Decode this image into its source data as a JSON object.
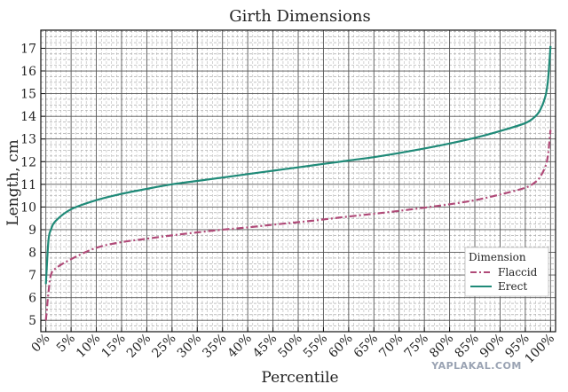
{
  "chart_data": {
    "type": "line",
    "title": "Girth Dimensions",
    "xlabel": "Percentile",
    "ylabel": "Length, cm",
    "xlim": [
      -1,
      101
    ],
    "ylim": [
      4.5,
      17.8
    ],
    "x_ticks": [
      "0%",
      "5%",
      "10%",
      "15%",
      "20%",
      "25%",
      "30%",
      "35%",
      "40%",
      "45%",
      "50%",
      "55%",
      "60%",
      "65%",
      "70%",
      "75%",
      "80%",
      "85%",
      "90%",
      "95%",
      "100%"
    ],
    "y_ticks": [
      "5",
      "6",
      "7",
      "8",
      "9",
      "10",
      "11",
      "12",
      "13",
      "14",
      "15",
      "16",
      "17"
    ],
    "grid": true,
    "legend": {
      "title": "Dimension",
      "placement": "bottom-right"
    },
    "series": [
      {
        "name": "Flaccid",
        "color": "#b04a78",
        "dash": true,
        "x": [
          0,
          0.5,
          1,
          2,
          5,
          10,
          15,
          20,
          25,
          30,
          35,
          40,
          45,
          50,
          55,
          60,
          65,
          70,
          75,
          80,
          85,
          90,
          95,
          97,
          98,
          99,
          99.5,
          100
        ],
        "y": [
          5.0,
          6.2,
          7.0,
          7.3,
          7.7,
          8.2,
          8.45,
          8.6,
          8.75,
          8.88,
          9.0,
          9.1,
          9.22,
          9.33,
          9.45,
          9.58,
          9.7,
          9.83,
          9.97,
          10.12,
          10.3,
          10.55,
          10.85,
          11.1,
          11.35,
          11.8,
          12.3,
          13.4
        ]
      },
      {
        "name": "Erect",
        "color": "#1f8a78",
        "dash": false,
        "x": [
          0,
          0.5,
          1,
          2,
          5,
          10,
          15,
          20,
          25,
          30,
          35,
          40,
          45,
          50,
          55,
          60,
          65,
          70,
          75,
          80,
          85,
          90,
          95,
          97,
          98,
          99,
          99.5,
          100
        ],
        "y": [
          6.6,
          8.5,
          9.0,
          9.4,
          9.9,
          10.3,
          10.58,
          10.8,
          11.0,
          11.15,
          11.3,
          11.45,
          11.6,
          11.75,
          11.9,
          12.05,
          12.2,
          12.38,
          12.58,
          12.8,
          13.05,
          13.35,
          13.7,
          14.0,
          14.3,
          14.9,
          15.6,
          17.1
        ]
      }
    ]
  },
  "watermark": "YAPLAKAL.COM"
}
